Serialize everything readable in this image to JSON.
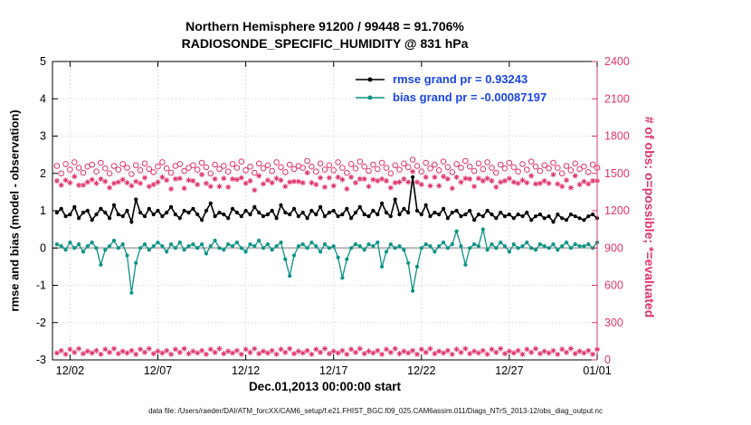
{
  "colors": {
    "rmse": "#000000",
    "bias": "#0c9486",
    "obs_counts": "#e0356b",
    "legend_text": "#1a46e5",
    "grid": "#c9c9c9",
    "zero_line": "#b5b5b5",
    "axis": "#000000"
  },
  "chart_data": {
    "type": "line",
    "title_line1": "Northern Hemisphere 91200 / 99448 = 91.706%",
    "title_line2": "RADIOSONDE_SPECIFIC_HUMIDITY @ 831 hPa",
    "xlabel": "Dec.01,2013 00:00:00 start",
    "ylabel_left": "rmse and bias (model - observation)",
    "ylabel_right": "# of obs: o=possible; *=evaluated",
    "footer": "data file: /Users/raeder/DAI/ATM_forcXX/CAM6_setup/f.e21.FHIST_BGC.f09_025.CAM6assim.011/Diags_NTrS_2013-12/obs_diag_output.nc",
    "legend": [
      {
        "label": "rmse grand pr = 0.93243",
        "color": "#000000"
      },
      {
        "label": "bias grand pr = -0.00087197",
        "color": "#0c9486"
      }
    ],
    "grid": true,
    "x_axis": {
      "range": [
        0,
        31
      ],
      "tick_positions": [
        1,
        6,
        11,
        16,
        21,
        26,
        31
      ],
      "tick_labels": [
        "12/02",
        "12/07",
        "12/12",
        "12/17",
        "12/22",
        "12/27",
        "01/01"
      ]
    },
    "y_left": {
      "range": [
        -3,
        5
      ],
      "ticks": [
        -3,
        -2,
        -1,
        0,
        1,
        2,
        3,
        4,
        5
      ]
    },
    "y_right": {
      "range": [
        0,
        2400
      ],
      "ticks": [
        0,
        300,
        600,
        900,
        1200,
        1500,
        1800,
        2100,
        2400
      ],
      "color": "#e0356b"
    },
    "x_start": 0.25,
    "x_step": 0.25,
    "series": [
      {
        "name": "obs_possible",
        "axis": "right",
        "marker": "circle",
        "line": false,
        "color": "#e0356b",
        "values": [
          1560,
          1500,
          1575,
          1530,
          1590,
          1545,
          1505,
          1555,
          1570,
          1515,
          1585,
          1540,
          1500,
          1560,
          1530,
          1575,
          1545,
          1495,
          1565,
          1525,
          1580,
          1535,
          1510,
          1555,
          1590,
          1540,
          1505,
          1560,
          1575,
          1520,
          1545,
          1565,
          1530,
          1585,
          1550,
          1500,
          1570,
          1535,
          1560,
          1515,
          1575,
          1545,
          1595,
          1525,
          1555,
          1505,
          1580,
          1540,
          1565,
          1520,
          1590,
          1550,
          1510,
          1570,
          1535,
          1560,
          1545,
          1600,
          1555,
          1515,
          1580,
          1530,
          1565,
          1525,
          1590,
          1545,
          1505,
          1575,
          1540,
          1595,
          1555,
          1520,
          1570,
          1535,
          1585,
          1545,
          1500,
          1565,
          1530,
          1580,
          1550,
          1610,
          1560,
          1515,
          1585,
          1540,
          1570,
          1525,
          1595,
          1550,
          1510,
          1575,
          1545,
          1600,
          1555,
          1520,
          1580,
          1535,
          1590,
          1545,
          1505,
          1570,
          1540,
          1585,
          1550,
          1515,
          1575,
          1530,
          1595,
          1555,
          1520,
          1565,
          1540,
          1585,
          1545,
          1500,
          1560,
          1525,
          1580,
          1535,
          1555,
          1510,
          1570,
          1545
        ]
      },
      {
        "name": "obs_evaluated",
        "axis": "right",
        "marker": "asterisk",
        "line": false,
        "color": "#e0356b",
        "values": [
          1440,
          1405,
          1445,
          1425,
          1475,
          1405,
          1405,
          1430,
          1450,
          1420,
          1455,
          1435,
          1385,
          1420,
          1430,
          1450,
          1425,
          1400,
          1435,
          1420,
          1465,
          1395,
          1410,
          1430,
          1470,
          1445,
          1375,
          1455,
          1460,
          1380,
          1445,
          1440,
          1410,
          1490,
          1420,
          1395,
          1455,
          1395,
          1460,
          1390,
          1455,
          1450,
          1465,
          1420,
          1440,
          1365,
          1480,
          1415,
          1445,
          1425,
          1460,
          1445,
          1395,
          1430,
          1435,
          1435,
          1425,
          1505,
          1425,
          1410,
          1465,
          1390,
          1465,
          1400,
          1470,
          1450,
          1375,
          1470,
          1425,
          1455,
          1455,
          1395,
          1450,
          1440,
          1455,
          1440,
          1385,
          1425,
          1430,
          1455,
          1430,
          1515,
          1430,
          1410,
          1470,
          1400,
          1470,
          1400,
          1475,
          1455,
          1380,
          1470,
          1430,
          1460,
          1455,
          1395,
          1460,
          1440,
          1460,
          1440,
          1390,
          1430,
          1440,
          1460,
          1430,
          1420,
          1445,
          1425,
          1480,
          1415,
          1420,
          1440,
          1420,
          1490,
          1415,
          1395,
          1445,
          1385,
          1480,
          1410,
          1435,
          1415,
          1440,
          1440
        ]
      },
      {
        "name": "obs_lower_band",
        "axis": "right",
        "marker": "asterisk",
        "line": false,
        "color": "#e0356b",
        "values": [
          55,
          75,
          45,
          85,
          60,
          90,
          50,
          70,
          55,
          75,
          45,
          85,
          60,
          90,
          50,
          70,
          55,
          75,
          45,
          85,
          60,
          90,
          50,
          70,
          55,
          75,
          45,
          85,
          60,
          90,
          50,
          70,
          55,
          75,
          45,
          85,
          60,
          90,
          50,
          70,
          55,
          75,
          45,
          85,
          60,
          90,
          50,
          70,
          55,
          75,
          45,
          85,
          60,
          90,
          50,
          70,
          55,
          75,
          45,
          85,
          60,
          90,
          50,
          70,
          55,
          75,
          45,
          85,
          60,
          90,
          50,
          70,
          55,
          75,
          45,
          85,
          60,
          90,
          50,
          70,
          55,
          75,
          45,
          85,
          60,
          90,
          50,
          70,
          55,
          75,
          45,
          85,
          60,
          90,
          50,
          70,
          55,
          75,
          45,
          85,
          60,
          90,
          50,
          70,
          55,
          75,
          45,
          85,
          60,
          90,
          50,
          70,
          55,
          75,
          45,
          85,
          60,
          90,
          50,
          70,
          55,
          75,
          45,
          85
        ]
      },
      {
        "name": "bias",
        "axis": "left",
        "marker": "dot",
        "line": true,
        "line_width": 1.3,
        "color": "#0c9486",
        "values": [
          0.1,
          0.05,
          -0.05,
          0.15,
          0.0,
          0.1,
          -0.1,
          0.05,
          0.15,
          0.0,
          -0.45,
          -0.05,
          0.05,
          0.2,
          0.0,
          0.1,
          -0.2,
          -1.2,
          -0.4,
          0.0,
          0.1,
          -0.05,
          0.05,
          0.15,
          0.05,
          -0.1,
          0.1,
          0.0,
          0.15,
          -0.05,
          0.05,
          0.1,
          0.0,
          0.1,
          -0.15,
          0.05,
          0.2,
          0.0,
          -0.05,
          0.1,
          0.05,
          0.15,
          0.0,
          -0.1,
          0.1,
          0.05,
          0.2,
          0.0,
          0.1,
          -0.05,
          0.05,
          0.15,
          -0.3,
          -0.75,
          -0.2,
          0.05,
          0.1,
          0.0,
          0.15,
          0.05,
          -0.1,
          0.1,
          0.0,
          0.05,
          -0.25,
          -0.8,
          -0.3,
          0.0,
          0.1,
          0.05,
          -0.05,
          0.1,
          0.05,
          0.15,
          -0.5,
          -0.1,
          0.1,
          0.0,
          0.05,
          -0.05,
          -0.4,
          -1.15,
          -0.5,
          0.0,
          0.1,
          0.05,
          -0.1,
          0.05,
          0.15,
          0.0,
          0.1,
          0.45,
          0.05,
          -0.45,
          0.0,
          0.1,
          0.05,
          0.5,
          -0.05,
          0.1,
          0.0,
          0.15,
          0.05,
          -0.1,
          0.1,
          0.0,
          0.05,
          0.15,
          0.0,
          -0.05,
          0.1,
          0.05,
          0.0,
          0.1,
          -0.05,
          0.05,
          0.15,
          0.0,
          0.1,
          0.05,
          0.05,
          0.1,
          0.0,
          0.15
        ]
      },
      {
        "name": "rmse",
        "axis": "left",
        "marker": "dot",
        "line": true,
        "line_width": 1.6,
        "color": "#000000",
        "values": [
          0.95,
          1.05,
          0.85,
          0.9,
          1.1,
          0.8,
          0.95,
          1.0,
          0.75,
          0.9,
          1.05,
          0.95,
          0.8,
          1.15,
          0.9,
          0.85,
          1.0,
          0.7,
          1.3,
          0.95,
          0.85,
          1.05,
          0.9,
          1.0,
          0.85,
          0.95,
          1.1,
          0.9,
          0.8,
          1.0,
          0.95,
          1.05,
          0.9,
          0.75,
          1.0,
          1.2,
          0.85,
          0.95,
          0.9,
          0.8,
          1.05,
          0.95,
          0.85,
          1.0,
          0.9,
          1.1,
          0.95,
          0.85,
          0.9,
          1.0,
          0.8,
          1.15,
          0.95,
          0.9,
          1.05,
          0.85,
          0.95,
          0.8,
          1.0,
          0.9,
          1.1,
          0.85,
          0.95,
          1.0,
          0.85,
          0.9,
          1.05,
          0.8,
          0.95,
          1.1,
          0.9,
          0.85,
          1.0,
          0.9,
          1.2,
          0.95,
          0.85,
          1.3,
          0.9,
          1.05,
          0.95,
          1.9,
          1.0,
          0.9,
          1.15,
          0.85,
          0.95,
          0.9,
          1.05,
          0.8,
          0.95,
          1.0,
          0.85,
          0.9,
          1.0,
          0.75,
          0.9,
          0.85,
          1.0,
          0.9,
          0.8,
          0.95,
          0.85,
          0.9,
          0.8,
          0.9,
          0.85,
          0.95,
          0.75,
          0.85,
          0.9,
          0.8,
          0.85,
          0.7,
          0.9,
          0.8,
          0.75,
          0.9,
          0.85,
          0.8,
          0.75,
          0.85,
          0.9,
          0.8
        ]
      }
    ]
  }
}
